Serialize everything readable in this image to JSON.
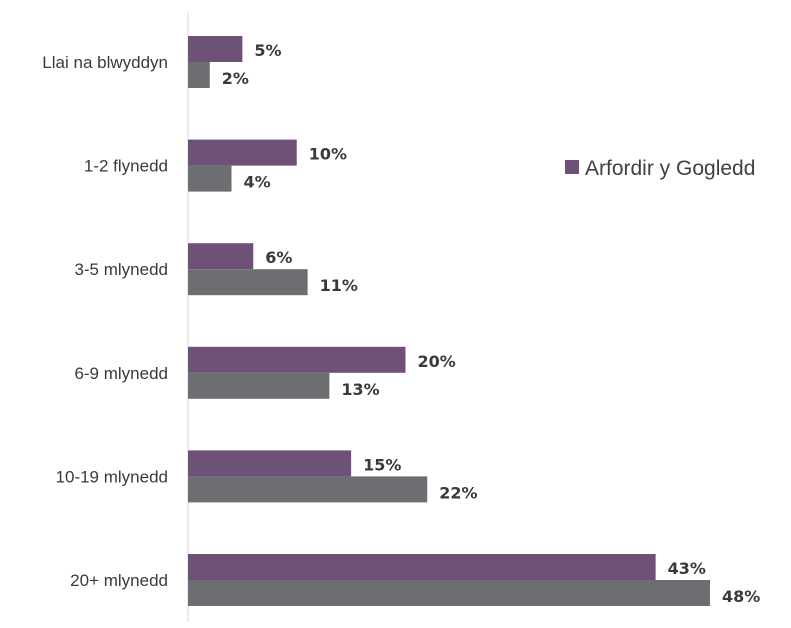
{
  "chart_data": {
    "type": "bar",
    "orientation": "horizontal",
    "categories": [
      "Llai na blwyddyn",
      "1-2 flynedd",
      "3-5 mlynedd",
      "6-9 mlynedd",
      "10-19 mlynedd",
      "20+ mlynedd"
    ],
    "series": [
      {
        "name": "Arfordir y Gogledd",
        "color": "#6e5177",
        "values": [
          5,
          10,
          6,
          20,
          15,
          43
        ],
        "labels": [
          "5%",
          "10%",
          "6%",
          "20%",
          "15%",
          "43%"
        ]
      },
      {
        "color": "#6d6e71",
        "values": [
          2,
          4,
          11,
          13,
          22,
          48
        ],
        "labels": [
          "2%",
          "4%",
          "11%",
          "13%",
          "22%",
          "48%"
        ]
      }
    ],
    "xlim": [
      0,
      50
    ],
    "grid": false,
    "legend_position": "right"
  }
}
